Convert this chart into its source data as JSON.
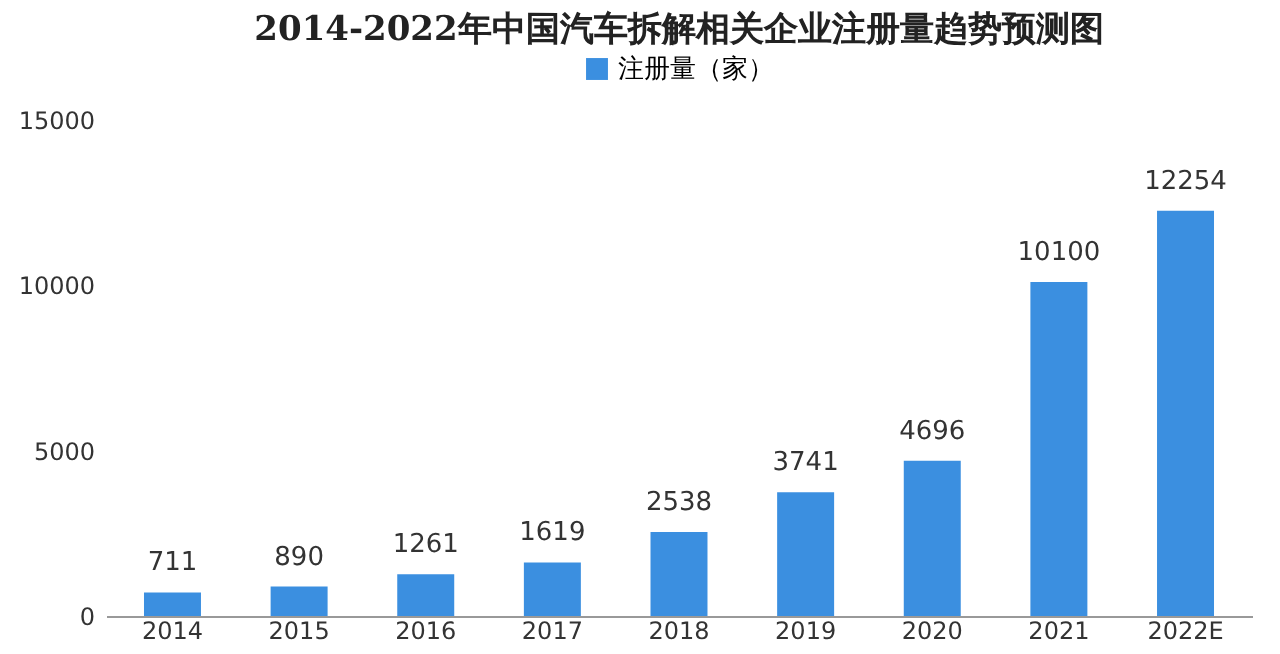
{
  "chart_data": {
    "type": "bar",
    "title": "2014-2022年中国汽车拆解相关企业注册量趋势预测图",
    "categories": [
      "2014",
      "2015",
      "2016",
      "2017",
      "2018",
      "2019",
      "2020",
      "2021",
      "2022E"
    ],
    "series": [
      {
        "name": "注册量（家）",
        "color": "#3b8fe0",
        "values": [
          711,
          890,
          1261,
          1619,
          2538,
          3741,
          4696,
          10100,
          12254
        ]
      }
    ],
    "ylim": [
      0,
      15000
    ],
    "yticks": [
      0,
      5000,
      10000,
      15000
    ],
    "grid": false,
    "legend": "top",
    "data_labels": true
  }
}
